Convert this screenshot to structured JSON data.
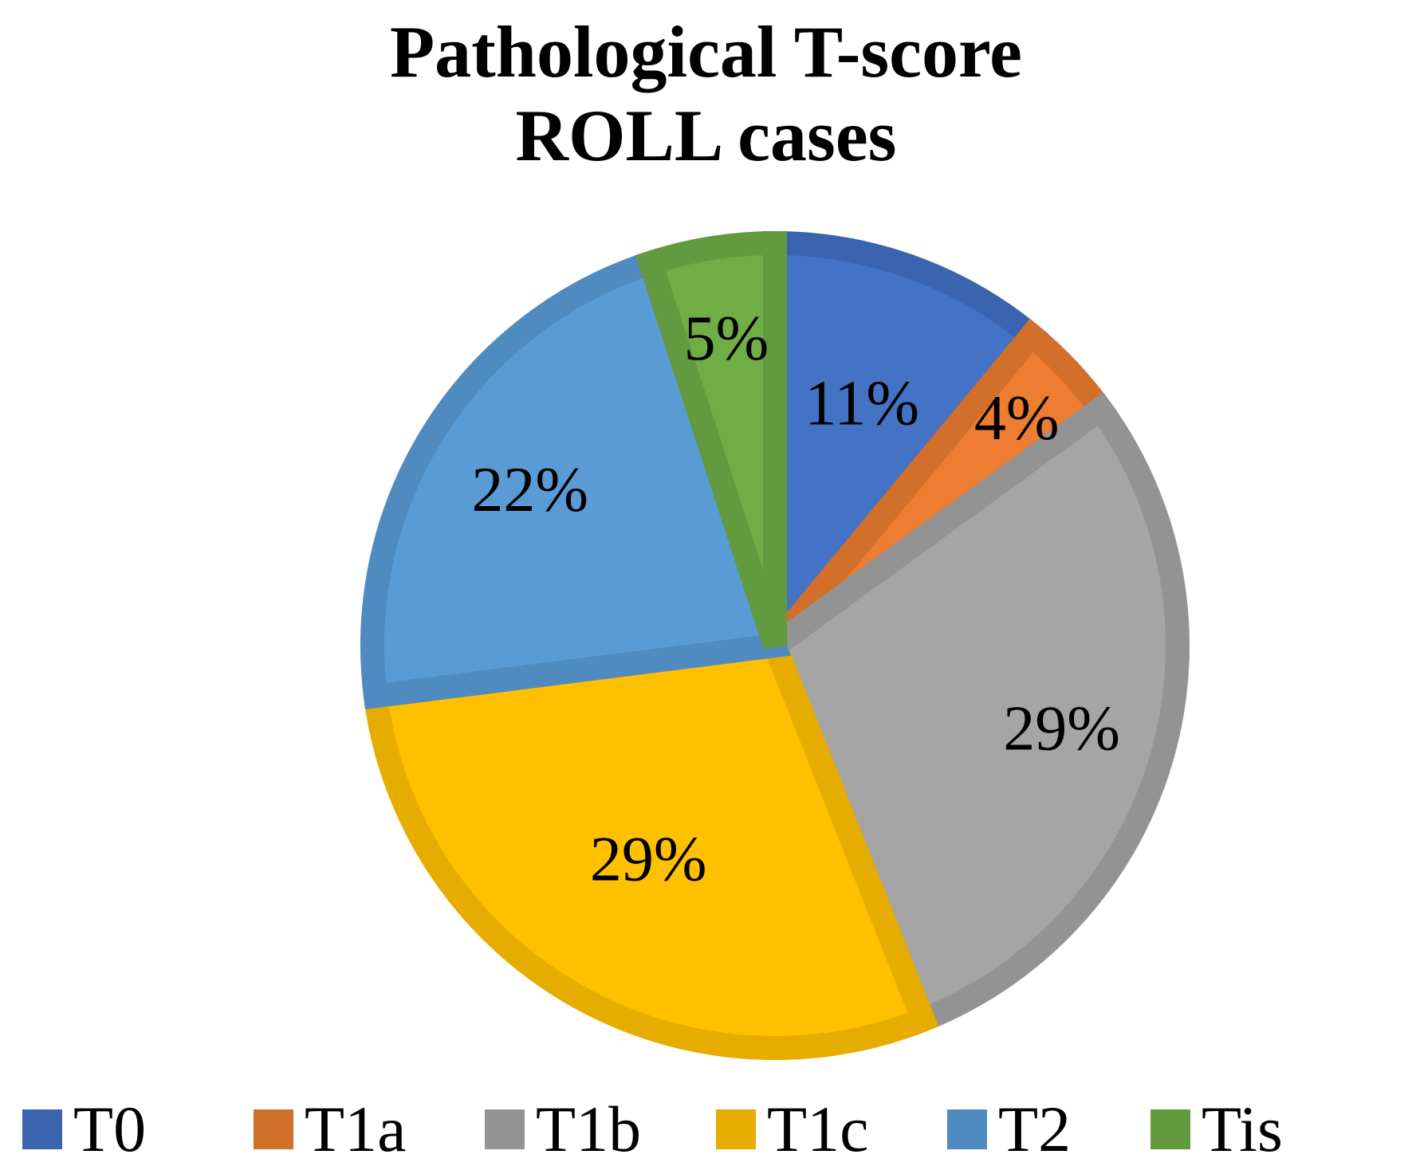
{
  "chart_data": {
    "type": "pie",
    "title": [
      "Pathological T-score",
      "ROLL cases"
    ],
    "categories": [
      "T0",
      "T1a",
      "T1b",
      "T1c",
      "T2",
      "Tis"
    ],
    "values": [
      11,
      4,
      29,
      29,
      22,
      5
    ],
    "labels": [
      "11%",
      "4%",
      "29%",
      "29%",
      "22%",
      "5%"
    ],
    "colors": [
      "#4472C4",
      "#ED7D31",
      "#A5A5A5",
      "#FFC000",
      "#5B9BD5",
      "#70AD47"
    ],
    "border_colors": [
      "#3A63B0",
      "#D26F2B",
      "#939393",
      "#E6AC00",
      "#4F8BC0",
      "#629A3F"
    ],
    "legend_position": "bottom",
    "start": "top",
    "direction": "clockwise"
  }
}
